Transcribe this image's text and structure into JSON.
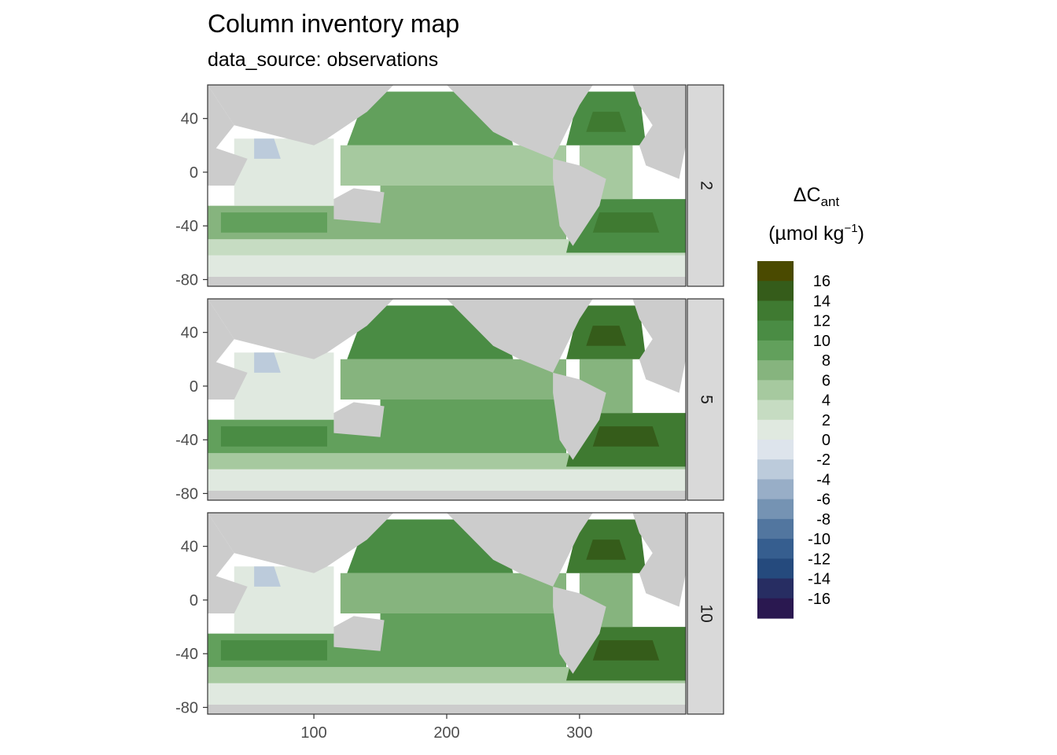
{
  "title": "Column inventory map",
  "subtitle": "data_source: observations",
  "axes": {
    "x_ticks": [
      100,
      200,
      300
    ],
    "y_ticks": [
      40,
      0,
      -40,
      -80
    ],
    "x_range": [
      20,
      380
    ],
    "y_range": [
      -85,
      65
    ]
  },
  "panels": [
    {
      "strip_label": "2"
    },
    {
      "strip_label": "5"
    },
    {
      "strip_label": "10"
    }
  ],
  "legend": {
    "title_main": "ΔC",
    "title_sub": "ant",
    "units_prefix": "(µmol kg",
    "units_sup": "−1",
    "units_suffix": ")",
    "labels": [
      "16",
      "14",
      "12",
      "10",
      "8",
      "6",
      "4",
      "2",
      "0",
      "-2",
      "-4",
      "-6",
      "-8",
      "-10",
      "-12",
      "-14",
      "-16"
    ],
    "colors": [
      "#4a4a00",
      "#355c1a",
      "#3f7a31",
      "#4a8c44",
      "#62a05c",
      "#86b47e",
      "#a6c99f",
      "#c6dcc2",
      "#e0e9e0",
      "#dde4ec",
      "#bccbdb",
      "#98aec7",
      "#7593b3",
      "#52769f",
      "#365e8f",
      "#254a7d",
      "#272d62",
      "#2a1850"
    ]
  },
  "colors": {
    "land": "#cccccc",
    "strip_bg": "#d9d9d9",
    "panel_border": "#333333",
    "tick_text": "#4d4d4d"
  }
}
